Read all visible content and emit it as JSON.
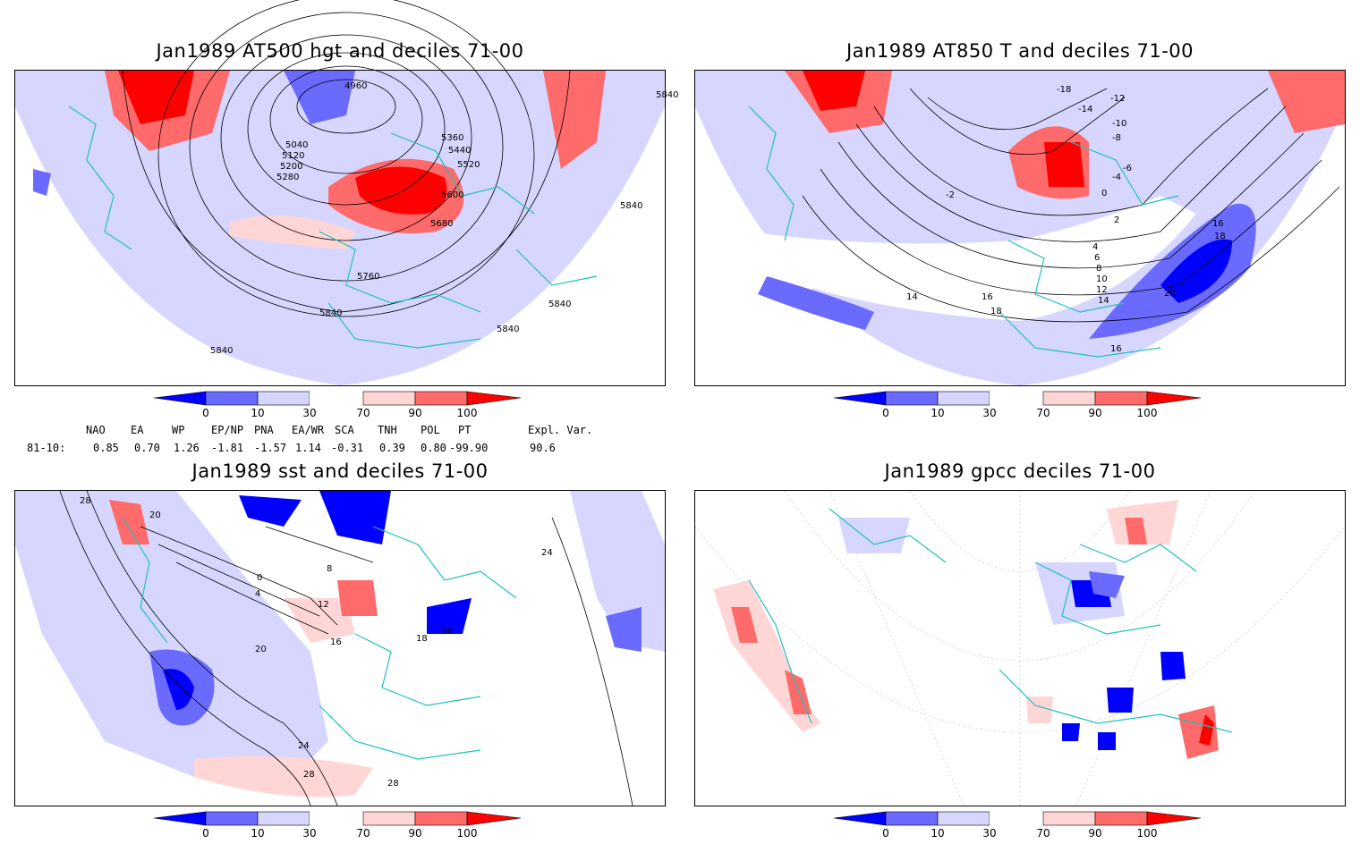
{
  "panels": [
    {
      "title": "Jan1989 AT500 hgt and deciles 71-00",
      "contour_labels": [
        "4960",
        "5040",
        "5120",
        "5200",
        "5280",
        "5360",
        "5440",
        "5520",
        "5600",
        "5680",
        "5760",
        "5840",
        "5840",
        "5840",
        "5840",
        "5840",
        "5840"
      ]
    },
    {
      "title": "Jan1989 AT850 T and deciles 71-00",
      "contour_labels": [
        "-18",
        "-14",
        "-12",
        "-10",
        "-8",
        "-6",
        "-4",
        "-2",
        "0",
        "2",
        "4",
        "6",
        "8",
        "10",
        "12",
        "14",
        "16",
        "16",
        "18",
        "20",
        "18",
        "16",
        "14"
      ]
    },
    {
      "title": "Jan1989 sst and deciles 71-00",
      "contour_labels": [
        "28",
        "20",
        "0",
        "4",
        "8",
        "12",
        "16",
        "20",
        "24",
        "28",
        "28",
        "24",
        "18",
        "16"
      ]
    },
    {
      "title": "Jan1989 gpcc deciles 71-00",
      "contour_labels": []
    }
  ],
  "colorbar": {
    "ticks": [
      "0",
      "10",
      "30",
      "70",
      "90",
      "100"
    ],
    "colors": [
      "#0000ff",
      "#6a6aff",
      "#d6d6ff",
      "#ffffff",
      "#ffd6d6",
      "#ff6a6a",
      "#ff0000"
    ]
  },
  "indices": {
    "row_label": "81-10:",
    "headers": [
      "NAO",
      "EA",
      "WP",
      "EP/NP",
      "PNA",
      "EA/WR",
      "SCA",
      "TNH",
      "POL",
      "PT",
      "Expl. Var."
    ],
    "values": [
      "0.85",
      "0.70",
      "1.26",
      "-1.81",
      "-1.57",
      "1.14",
      "-0.31",
      "0.39",
      "0.80",
      "-99.90",
      "90.6"
    ]
  },
  "colors": {
    "coastline": "#20c0c0",
    "contour": "#000000",
    "light_blue": "#d6d6ff",
    "mid_blue": "#6a6aff",
    "dark_blue": "#0000ff",
    "light_red": "#ffd6d6",
    "mid_red": "#ff6a6a",
    "dark_red": "#ff0000"
  }
}
